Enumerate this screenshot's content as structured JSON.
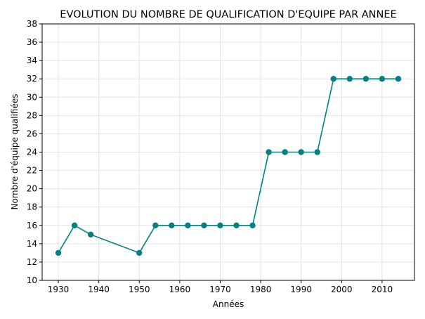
{
  "chart_data": {
    "type": "line",
    "title": "EVOLUTION DU NOMBRE DE QUALIFICATION D'EQUIPE PAR ANNEE",
    "xlabel": "Années",
    "ylabel": "Nombre d'équipe qualifiées",
    "x": [
      1930,
      1934,
      1938,
      1950,
      1954,
      1958,
      1962,
      1966,
      1970,
      1974,
      1978,
      1982,
      1986,
      1990,
      1994,
      1998,
      2002,
      2006,
      2010,
      2014
    ],
    "series": [
      {
        "values": [
          13,
          16,
          15,
          13,
          16,
          16,
          16,
          16,
          16,
          16,
          16,
          24,
          24,
          24,
          24,
          32,
          32,
          32,
          32,
          32
        ],
        "color": "#008080"
      }
    ],
    "xlim": [
      1926,
      2018
    ],
    "ylim": [
      10,
      38
    ],
    "xticks": [
      1930,
      1940,
      1950,
      1960,
      1970,
      1980,
      1990,
      2000,
      2010
    ],
    "yticks": [
      10,
      12,
      14,
      16,
      18,
      20,
      22,
      24,
      26,
      28,
      30,
      32,
      34,
      36,
      38
    ],
    "grid": true,
    "marker": "circle"
  }
}
